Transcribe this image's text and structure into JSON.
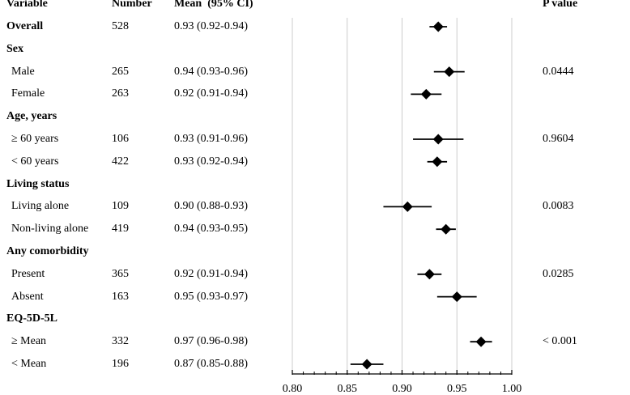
{
  "headers": {
    "variable": "Variable",
    "number": "Number",
    "mean": "Mean  (95% CI)",
    "pvalue": "P value"
  },
  "rows": [
    {
      "label": "Overall",
      "bold": true,
      "number": "528",
      "ci": "0.93 (0.92-0.94)",
      "p": ""
    },
    {
      "label": "Sex",
      "bold": true,
      "number": "",
      "ci": "",
      "p": ""
    },
    {
      "label": "Male",
      "bold": false,
      "number": "265",
      "ci": "0.94 (0.93-0.96)",
      "p": "0.0444"
    },
    {
      "label": "Female",
      "bold": false,
      "number": "263",
      "ci": "0.92 (0.91-0.94)",
      "p": ""
    },
    {
      "label": "Age, years",
      "bold": true,
      "number": "",
      "ci": "",
      "p": ""
    },
    {
      "label": "≥ 60 years",
      "bold": false,
      "number": "106",
      "ci": "0.93 (0.91-0.96)",
      "p": "0.9604"
    },
    {
      "label": "< 60 years",
      "bold": false,
      "number": "422",
      "ci": "0.93 (0.92-0.94)",
      "p": ""
    },
    {
      "label": "Living status",
      "bold": true,
      "number": "",
      "ci": "",
      "p": ""
    },
    {
      "label": "Living alone",
      "bold": false,
      "number": "109",
      "ci": "0.90 (0.88-0.93)",
      "p": "0.0083"
    },
    {
      "label": "Non-living alone",
      "bold": false,
      "number": "419",
      "ci": "0.94 (0.93-0.95)",
      "p": ""
    },
    {
      "label": "Any comorbidity",
      "bold": true,
      "number": "",
      "ci": "",
      "p": ""
    },
    {
      "label": "Present",
      "bold": false,
      "number": "365",
      "ci": "0.92 (0.91-0.94)",
      "p": "0.0285"
    },
    {
      "label": "Absent",
      "bold": false,
      "number": "163",
      "ci": "0.95 (0.93-0.97)",
      "p": ""
    },
    {
      "label": "EQ-5D-5L",
      "bold": true,
      "number": "",
      "ci": "",
      "p": ""
    },
    {
      "label": "≥ Mean",
      "bold": false,
      "number": "332",
      "ci": "0.97 (0.96-0.98)",
      "p": "< 0.001"
    },
    {
      "label": "< Mean",
      "bold": false,
      "number": "196",
      "ci": "0.87 (0.85-0.88)",
      "p": ""
    }
  ],
  "chart_data": {
    "type": "forest",
    "xlim": [
      0.8,
      1.0
    ],
    "ticks": [
      "0.80",
      "0.85",
      "0.90",
      "0.95",
      "1.00"
    ],
    "grid": true,
    "marker_color": "#000000",
    "grid_color": "#cccccc",
    "points": [
      {
        "row": 0,
        "mean": 0.933,
        "lo": 0.925,
        "hi": 0.941
      },
      {
        "row": 2,
        "mean": 0.943,
        "lo": 0.929,
        "hi": 0.957
      },
      {
        "row": 3,
        "mean": 0.922,
        "lo": 0.908,
        "hi": 0.936
      },
      {
        "row": 5,
        "mean": 0.933,
        "lo": 0.91,
        "hi": 0.956
      },
      {
        "row": 6,
        "mean": 0.932,
        "lo": 0.923,
        "hi": 0.941
      },
      {
        "row": 8,
        "mean": 0.905,
        "lo": 0.883,
        "hi": 0.927
      },
      {
        "row": 9,
        "mean": 0.94,
        "lo": 0.931,
        "hi": 0.949
      },
      {
        "row": 11,
        "mean": 0.925,
        "lo": 0.914,
        "hi": 0.936
      },
      {
        "row": 12,
        "mean": 0.95,
        "lo": 0.932,
        "hi": 0.968
      },
      {
        "row": 14,
        "mean": 0.972,
        "lo": 0.962,
        "hi": 0.982
      },
      {
        "row": 15,
        "mean": 0.868,
        "lo": 0.853,
        "hi": 0.883
      }
    ]
  }
}
